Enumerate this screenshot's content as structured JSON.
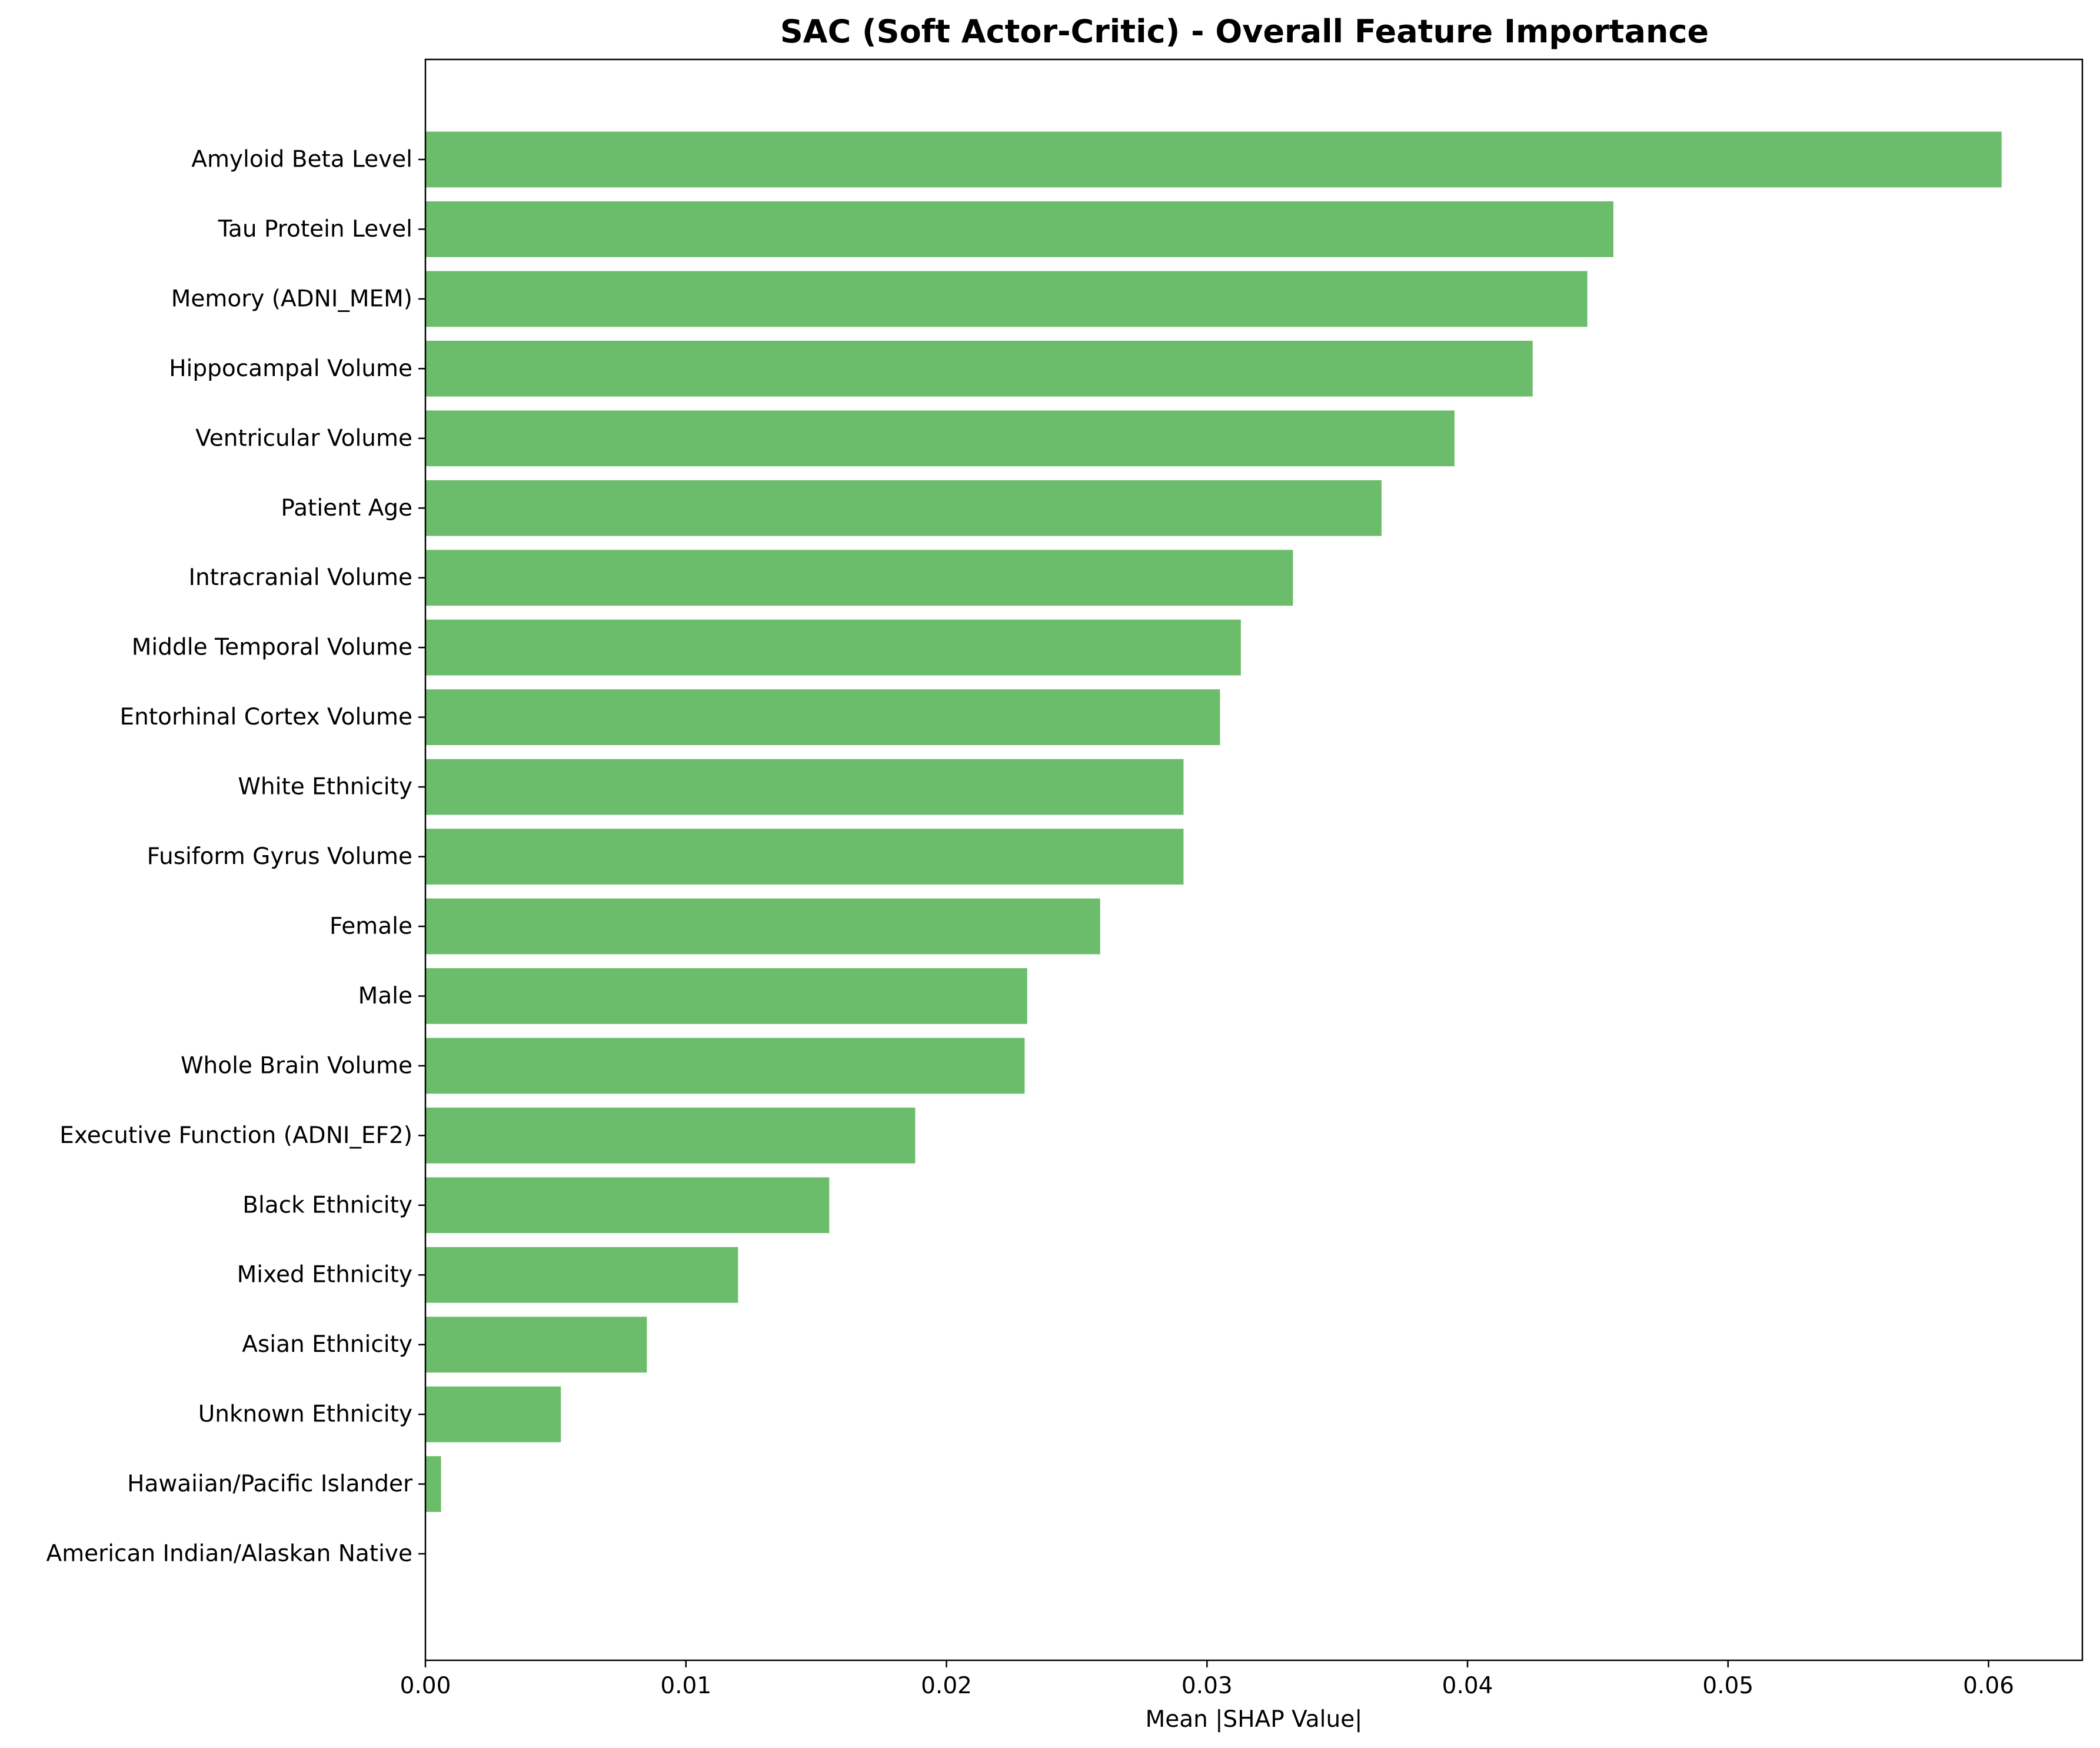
{
  "chart_data": {
    "type": "bar",
    "orientation": "horizontal",
    "title": "SAC (Soft Actor-Critic) - Overall Feature Importance",
    "xlabel": "Mean |SHAP Value|",
    "ylabel": "",
    "xlim": [
      0,
      0.0636
    ],
    "xticks": [
      "0.00",
      "0.01",
      "0.02",
      "0.03",
      "0.04",
      "0.05",
      "0.06"
    ],
    "bar_color": "#6bbd6b",
    "grid": false,
    "categories": [
      "Amyloid Beta Level",
      "Tau Protein Level",
      "Memory (ADNI_MEM)",
      "Hippocampal Volume",
      "Ventricular Volume",
      "Patient Age",
      "Intracranial Volume",
      "Middle Temporal Volume",
      "Entorhinal Cortex Volume",
      "White Ethnicity",
      "Fusiform Gyrus Volume",
      "Female",
      "Male",
      "Whole Brain Volume",
      "Executive Function (ADNI_EF2)",
      "Black Ethnicity",
      "Mixed Ethnicity",
      "Asian Ethnicity",
      "Unknown Ethnicity",
      "Hawaiian/Pacific Islander",
      "American Indian/Alaskan Native"
    ],
    "values": [
      0.0605,
      0.0456,
      0.0446,
      0.0425,
      0.0395,
      0.0367,
      0.0333,
      0.0313,
      0.0305,
      0.0291,
      0.0291,
      0.0259,
      0.0231,
      0.023,
      0.0188,
      0.0155,
      0.012,
      0.0085,
      0.0052,
      0.0006,
      0.0
    ]
  }
}
